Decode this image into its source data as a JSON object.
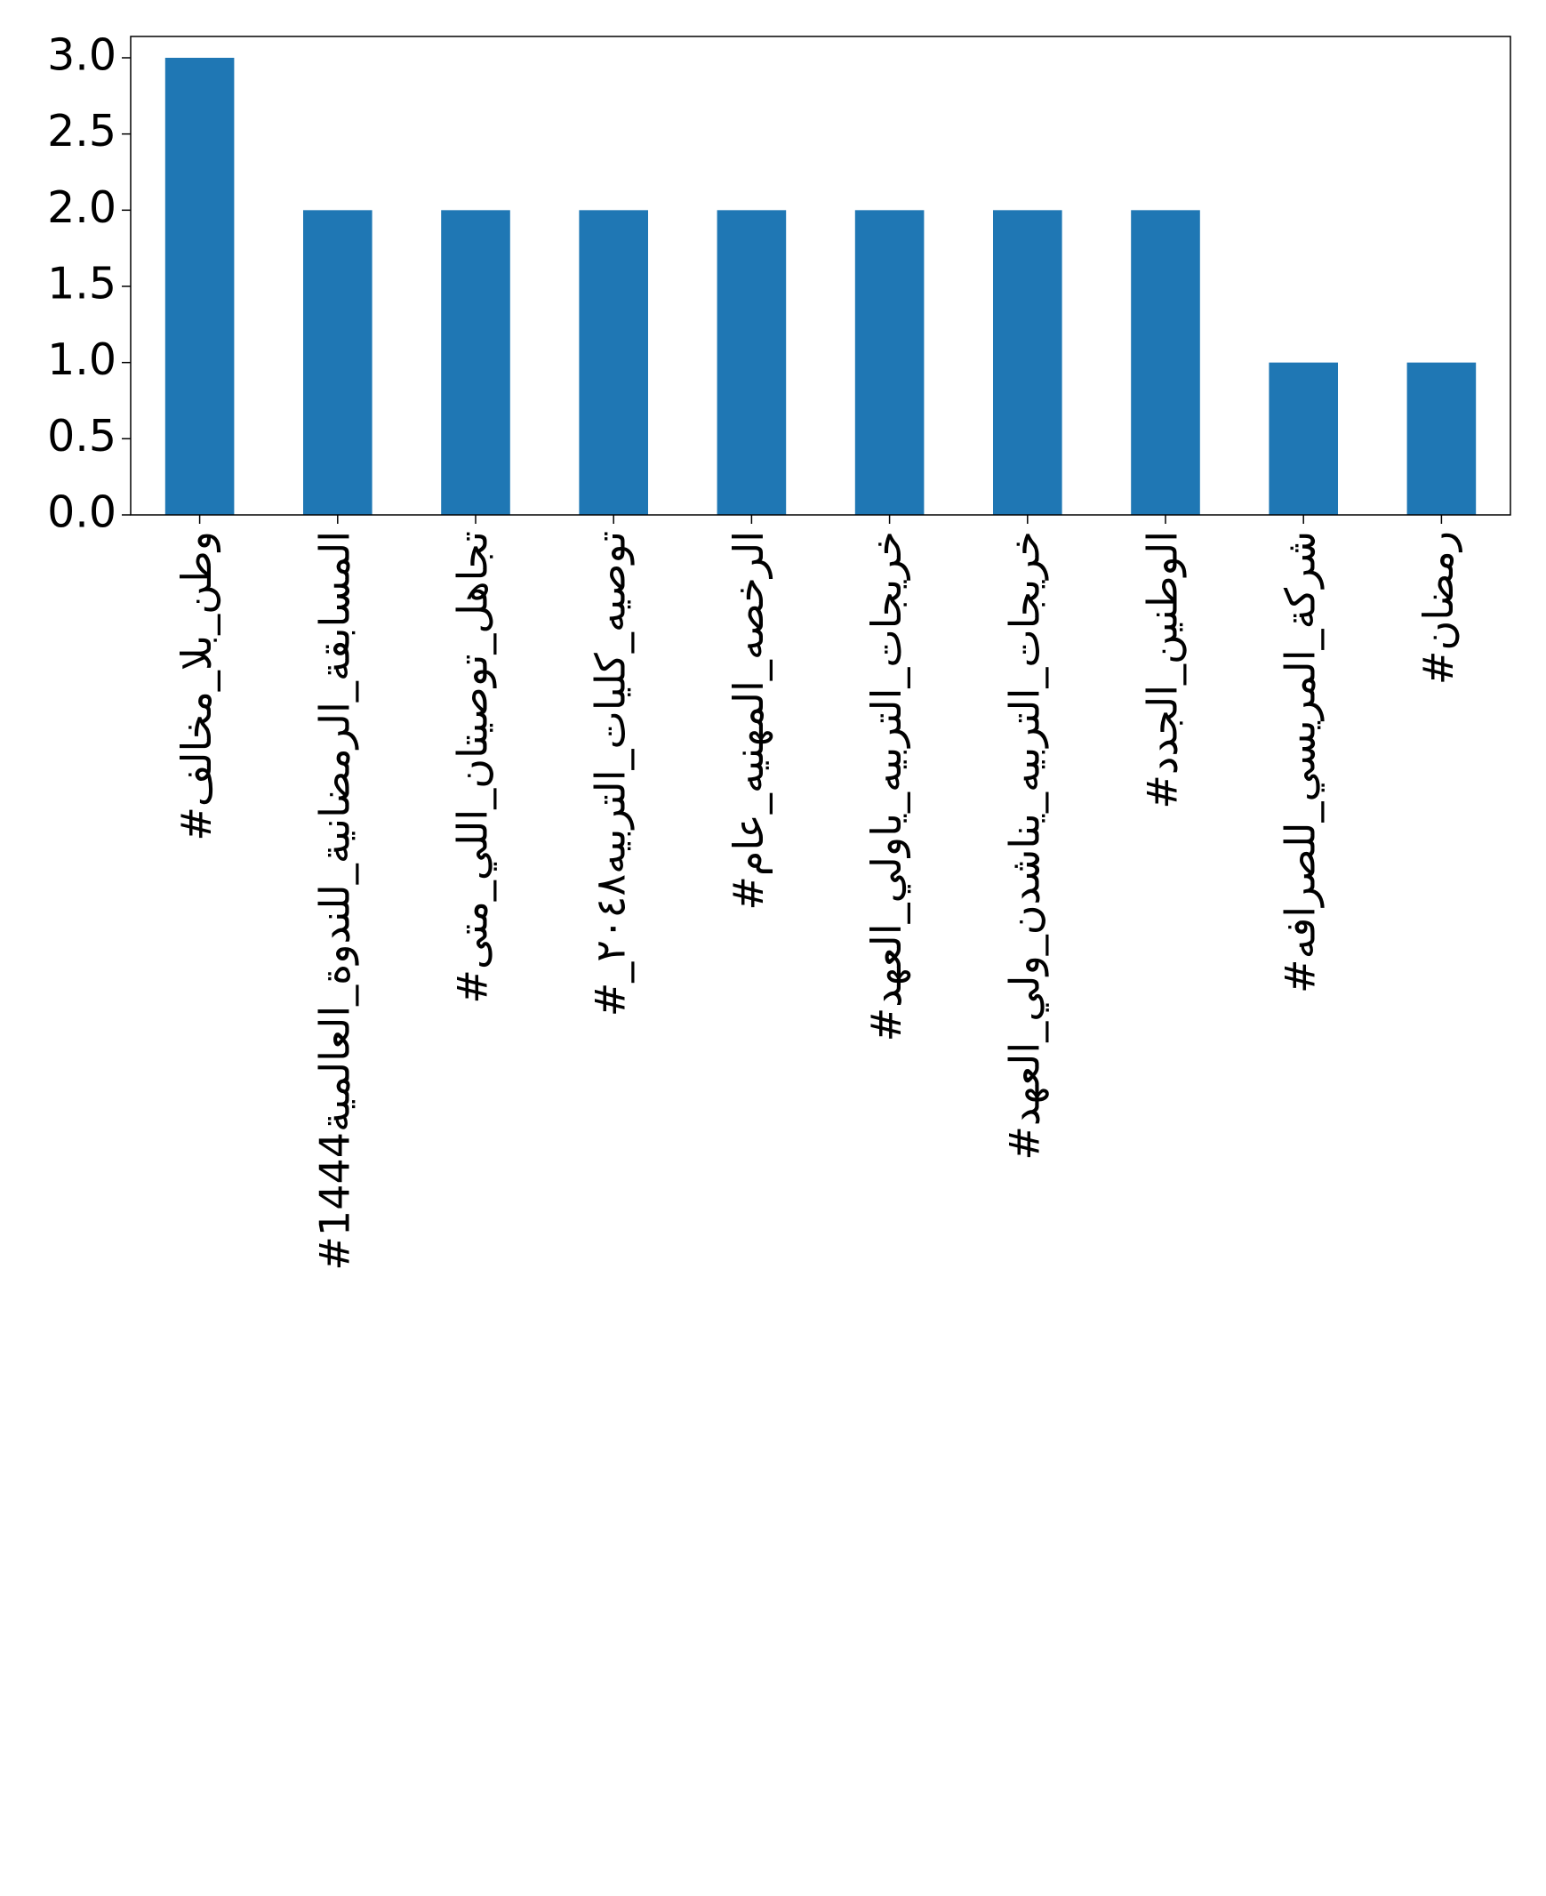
{
  "chart_data": {
    "type": "bar",
    "categories": [
      "#وطن_بلا_مخالف",
      "#المسابقة_الرمضانية_للندوة_العالمية1444",
      "#تجاهل_توصيتان_اللي_متى",
      "#_توصيه_كليات_التربيه٢٠٤٨",
      "#الرخصه_المهنيه_عام",
      "#خريجات_التربيه_ياولي_العهد",
      "#خريجات_التربيه_يناشدن_ولي_العهد",
      "#الوطنين_الجدد",
      "#شركة_المريسي_للصرافه",
      "#رمضان"
    ],
    "values": [
      3,
      2,
      2,
      2,
      2,
      2,
      2,
      2,
      1,
      1
    ],
    "color": "#1f77b4",
    "ylim": [
      0,
      3.14
    ],
    "yticks": [
      {
        "value": 0,
        "label": "0.0"
      },
      {
        "value": 0.5,
        "label": "0.5"
      },
      {
        "value": 1,
        "label": "1.0"
      },
      {
        "value": 1.5,
        "label": "1.5"
      },
      {
        "value": 2,
        "label": "2.0"
      },
      {
        "value": 2.5,
        "label": "2.5"
      },
      {
        "value": 3,
        "label": "3.0"
      }
    ],
    "grid": false
  }
}
